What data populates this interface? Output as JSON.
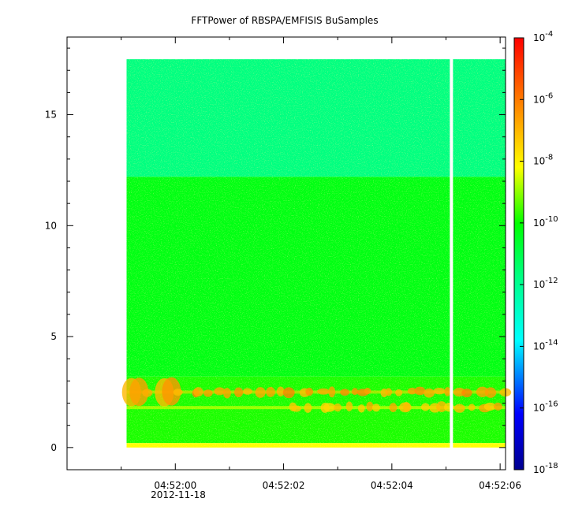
{
  "chart_data": {
    "type": "heatmap",
    "title": "FFTPower of RBSPA/EMFISIS  BuSamples",
    "xlabel": "",
    "ylabel": "",
    "x_ticks": [
      "04:52:00",
      "04:52:02",
      "04:52:04",
      "04:52:06"
    ],
    "x_date_label": "2012-11-18",
    "y_ticks": [
      "0",
      "5",
      "10",
      "15"
    ],
    "ylim": [
      -1,
      18.5
    ],
    "x_range_seconds": [
      -2.0,
      6.1
    ],
    "data_x_range_seconds": [
      -0.9,
      6.1
    ],
    "data_y_range": [
      0,
      17.5
    ],
    "gap_at_seconds": 5.1,
    "colorbar": {
      "scale": "log",
      "range_exponents": [
        -18,
        -4
      ],
      "tick_base": "10",
      "tick_exponents": [
        "-4",
        "-6",
        "-8",
        "-10",
        "-12",
        "-14",
        "-16",
        "-18"
      ]
    },
    "bands": [
      {
        "y_from": 12.2,
        "y_to": 17.5,
        "level_exponent": -12
      },
      {
        "y_from": 3.2,
        "y_to": 12.2,
        "level_exponent": -10.3
      },
      {
        "y_from": 0.2,
        "y_to": 3.2,
        "level_exponent": -9.8
      },
      {
        "y_from": 0.0,
        "y_to": 0.2,
        "level_exponent": -8
      }
    ],
    "emission_lines": [
      {
        "y": 2.5,
        "level_exponent": -6.5
      },
      {
        "y": 1.8,
        "level_exponent": -7.0
      }
    ]
  },
  "colors": {
    "background": "#ffffff",
    "gap": "#ffffff"
  }
}
